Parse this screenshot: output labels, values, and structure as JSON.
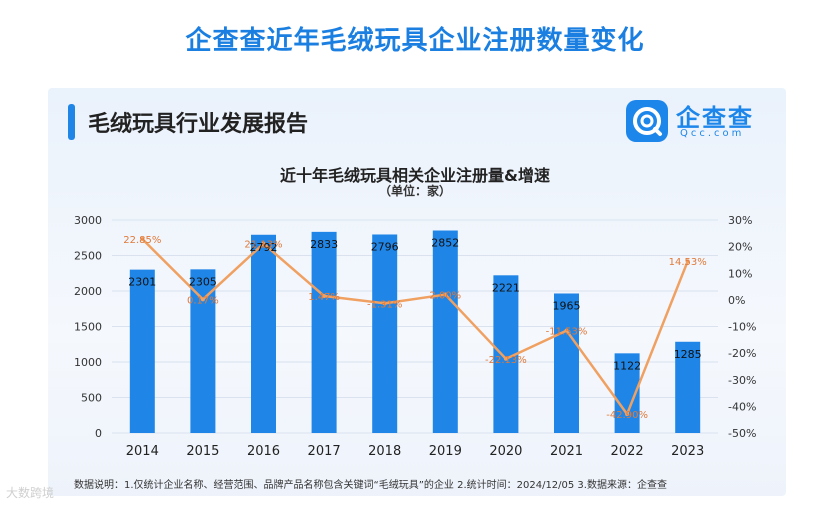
{
  "headline": "企查查近年毛绒玩具企业注册数量变化",
  "card": {
    "title": "毛绒玩具行业发展报告",
    "logo_text": "企查查",
    "logo_sub": "Qcc.com"
  },
  "footnote": "数据说明：1.仅统计企业名称、经营范围、品牌产品名称包含关键词“毛绒玩具”的企业  2.统计时间：2024/12/05  3.数据来源：企查查",
  "watermark": "大数跨境",
  "colors": {
    "bar": "#1f86e8",
    "line": "#f0a060",
    "headline": "#1a7fe0"
  },
  "chart_data": {
    "type": "bar",
    "title": "近十年毛绒玩具相关企业注册量&增速",
    "subtitle": "（单位：家）",
    "categories": [
      "2014",
      "2015",
      "2016",
      "2017",
      "2018",
      "2019",
      "2020",
      "2021",
      "2022",
      "2023"
    ],
    "series": [
      {
        "values": [
          2301,
          2305,
          2792,
          2833,
          2796,
          2852,
          2221,
          1965,
          1122,
          1285
        ]
      }
    ],
    "line_series": [
      {
        "values": [
          22.85,
          0.17,
          21.13,
          1.47,
          -1.31,
          2.0,
          -22.13,
          -11.53,
          -42.9,
          14.53
        ],
        "labels": [
          "22.85%",
          "0.17%",
          "21.13%",
          "1.47%",
          "-1.31%",
          "2.00%",
          "-22.13%",
          "-11.53%",
          "-42.90%",
          "14.53%"
        ]
      }
    ],
    "ylim": [
      0,
      3000
    ],
    "yticks": [
      "0",
      "500",
      "1000",
      "1500",
      "2000",
      "2500",
      "3000"
    ],
    "y2lim": [
      -50,
      30
    ],
    "y2ticks": [
      "-50%",
      "-40%",
      "-30%",
      "-20%",
      "-10%",
      "0%",
      "10%",
      "20%",
      "30%"
    ],
    "grid": true
  }
}
